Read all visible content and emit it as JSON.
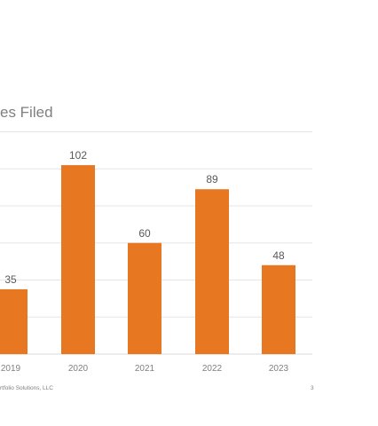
{
  "chart_data": {
    "type": "bar",
    "title": "es Filed",
    "categories": [
      "2019",
      "2020",
      "2021",
      "2022",
      "2023"
    ],
    "values": [
      35,
      102,
      60,
      89,
      48
    ],
    "data_labels": [
      "35",
      "102",
      "60",
      "89",
      "48"
    ],
    "ylim": [
      0,
      120
    ],
    "grid": true,
    "bar_color": "#e87722",
    "grid_color": "#e6e6e6",
    "axis_color": "#d9d9d9"
  },
  "footer": {
    "left_text": "rtfolio Solutions, LLC",
    "page_number": "3"
  }
}
